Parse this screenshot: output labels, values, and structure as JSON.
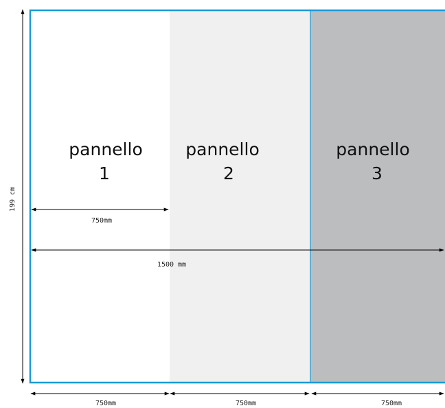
{
  "height_dimension": {
    "label": "199 cm"
  },
  "panels": [
    {
      "line1": "pannello",
      "line2": "1",
      "fill": "#ffffff"
    },
    {
      "line1": "pannello",
      "line2": "2",
      "fill": "#f0f0f0"
    },
    {
      "line1": "pannello",
      "line2": "3",
      "fill": "#bcbdbf"
    }
  ],
  "inner_dimensions": {
    "panel_width": "750mm",
    "total_width": "1500 mm"
  },
  "bottom_dimensions": [
    "750mm",
    "750mm",
    "750mm"
  ],
  "colors": {
    "frame": "#1a9ad6",
    "arrow": "#000000"
  }
}
